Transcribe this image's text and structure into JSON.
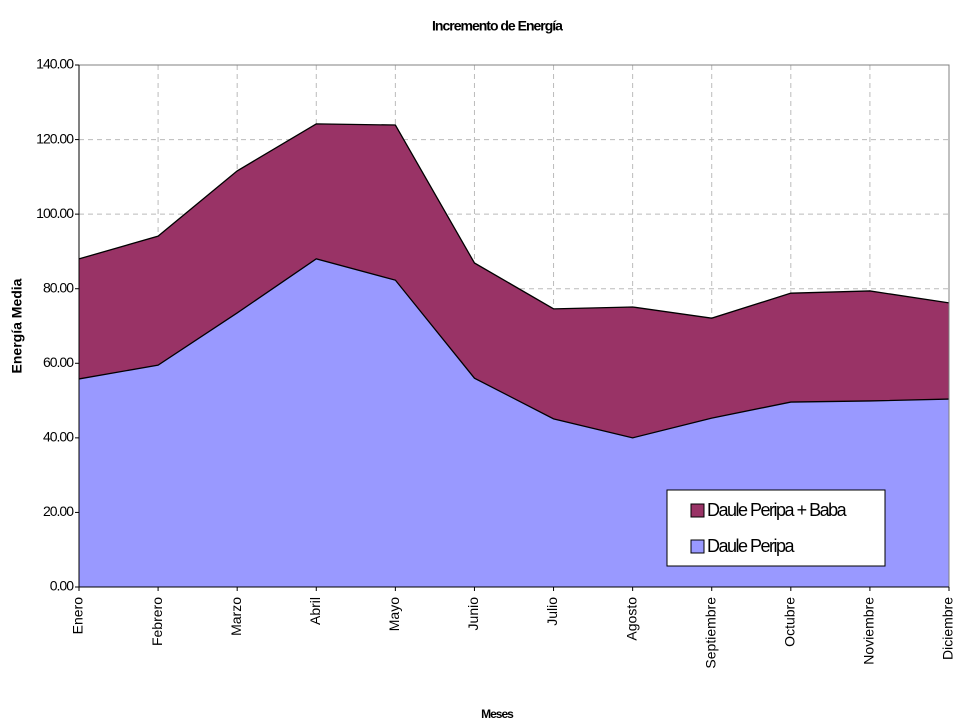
{
  "chart_data": {
    "type": "area",
    "title": "Incremento de Energía",
    "x_label": "Meses",
    "y_label": "Energía  Media",
    "categories": [
      "Enero",
      "Febrero",
      "Marzo",
      "Abril",
      "Mayo",
      "Junio",
      "Julio",
      "Agosto",
      "Septiembre",
      "Octubre",
      "Noviembre",
      "Diciembre"
    ],
    "series": [
      {
        "name": "Daule Peripa + Baba",
        "color": "#993366",
        "values": [
          88.0,
          94.1,
          111.6,
          124.2,
          123.9,
          86.9,
          74.6,
          75.1,
          72.1,
          78.8,
          79.4,
          76.2
        ]
      },
      {
        "name": "Daule Peripa",
        "color": "#9999ff",
        "values": [
          55.8,
          59.5,
          73.5,
          88.0,
          82.3,
          56.0,
          45.1,
          40.0,
          45.3,
          49.6,
          49.9,
          50.4
        ]
      }
    ],
    "ylim": [
      0,
      140
    ],
    "yticks": [
      {
        "value": 0,
        "label": "0.00"
      },
      {
        "value": 20,
        "label": "20.00"
      },
      {
        "value": 40,
        "label": "40.00"
      },
      {
        "value": 60,
        "label": "60.00"
      },
      {
        "value": 80,
        "label": "80.00"
      },
      {
        "value": 100,
        "label": "100.00"
      },
      {
        "value": 120,
        "label": "120.00"
      },
      {
        "value": 140,
        "label": "140.00"
      }
    ],
    "grid": true,
    "legend": "lower right"
  }
}
